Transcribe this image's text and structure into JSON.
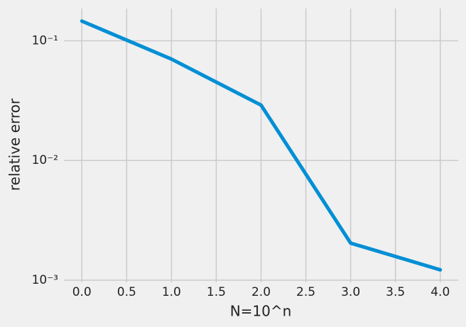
{
  "chart_data": {
    "type": "line",
    "xlabel": "N=10^n",
    "ylabel": "relative error",
    "x": [
      0,
      1,
      2,
      3,
      4
    ],
    "series": [
      {
        "color": "#008fd5",
        "values": [
          0.146,
          0.0703,
          0.029,
          0.00204,
          0.00122
        ]
      }
    ],
    "xlim": [
      -0.2,
      4.2
    ],
    "xticks": [
      {
        "value": 0,
        "label": "0.0"
      },
      0.5,
      {
        "value": 1,
        "label": "1.0"
      },
      1.5,
      {
        "value": 2,
        "label": "2.0"
      },
      2.5,
      {
        "value": 3,
        "label": "3.0"
      },
      3.5,
      {
        "value": 4,
        "label": "4.0"
      }
    ],
    "ylim": [
      0.00096,
      0.186
    ],
    "yticks": [
      {
        "value": 0.001,
        "label": "10⁻³"
      },
      {
        "value": 0.01,
        "label": "10⁻²"
      },
      {
        "value": 0.1,
        "label": "10⁻¹"
      }
    ],
    "yscale": "log",
    "grid": true
  }
}
